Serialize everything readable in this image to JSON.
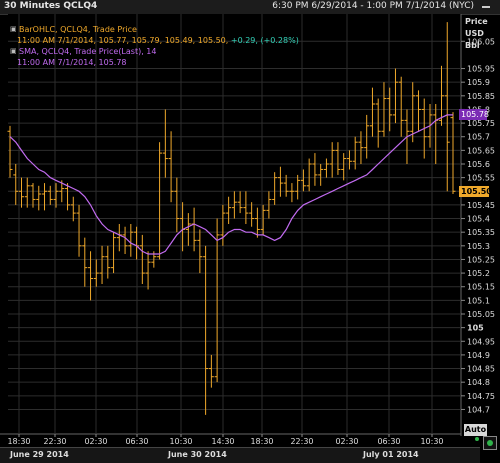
{
  "header": {
    "title": "30 Minutes QCLQ4",
    "range": "6:30 PM 6/29/2014 - 1:00 PM 7/1/2014 (NYC)"
  },
  "legend": {
    "bar_label": "BarOHLC, QCLQ4, Trade Price",
    "bar_values": "11:00 AM 7/1/2014, 105.77, 105.79, 105.49, 105.50,",
    "bar_change": "+0.29, (+0.28%)",
    "sma_label": "SMA, QCLQ4, Trade Price(Last),  14",
    "sma_values": "11:00 AM 7/1/2014, 105.78"
  },
  "axis": {
    "title_lines": [
      "Price",
      "USD",
      "Bbl"
    ],
    "auto_button": "Auto"
  },
  "badges": {
    "sma_last": "105.78",
    "price_last": "105.50"
  },
  "date_labels": [
    "June 29 2014",
    "June 30 2014",
    "July 01 2014"
  ],
  "colors": {
    "bars": "#f0a92b",
    "sma": "#c16bf0",
    "change": "#33d1b8",
    "grid": "#2d2d2d"
  },
  "chart_data": {
    "type": "bar",
    "subtype": "ohlc",
    "title": "30 Minutes QCLQ4",
    "ylabel": "Price USD Bbl",
    "ylim": [
      104.61,
      106.15
    ],
    "yticks": [
      104.7,
      104.75,
      104.8,
      104.85,
      104.9,
      104.95,
      105,
      105.05,
      105.1,
      105.15,
      105.2,
      105.25,
      105.3,
      105.35,
      105.4,
      105.45,
      105.5,
      105.55,
      105.6,
      105.65,
      105.7,
      105.75,
      105.8,
      105.85,
      105.9,
      105.95,
      106.05
    ],
    "xticks": [
      "18:30",
      "22:30",
      "02:30",
      "06:30",
      "10:30",
      "14:30",
      "18:30",
      "22:30",
      "02:30",
      "06:30",
      "10:30"
    ],
    "grid": true,
    "series": [
      {
        "name": "QCLQ4",
        "ohlc": [
          [
            105.72,
            105.74,
            105.55,
            105.58
          ],
          [
            105.56,
            105.6,
            105.45,
            105.5
          ],
          [
            105.5,
            105.55,
            105.44,
            105.48
          ],
          [
            105.48,
            105.55,
            105.44,
            105.52
          ],
          [
            105.52,
            105.53,
            105.44,
            105.47
          ],
          [
            105.47,
            105.52,
            105.43,
            105.49
          ],
          [
            105.49,
            105.53,
            105.43,
            105.5
          ],
          [
            105.5,
            105.52,
            105.45,
            105.47
          ],
          [
            105.47,
            105.53,
            105.44,
            105.5
          ],
          [
            105.5,
            105.54,
            105.46,
            105.51
          ],
          [
            105.51,
            105.53,
            105.43,
            105.45
          ],
          [
            105.45,
            105.48,
            105.39,
            105.42
          ],
          [
            105.42,
            105.45,
            105.26,
            105.3
          ],
          [
            105.3,
            105.33,
            105.15,
            105.22
          ],
          [
            105.22,
            105.28,
            105.1,
            105.18
          ],
          [
            105.18,
            105.25,
            105.15,
            105.2
          ],
          [
            105.2,
            105.3,
            105.16,
            105.26
          ],
          [
            105.26,
            105.3,
            105.18,
            105.22
          ],
          [
            105.22,
            105.35,
            105.2,
            105.33
          ],
          [
            105.33,
            105.38,
            105.28,
            105.34
          ],
          [
            105.34,
            105.37,
            105.27,
            105.3
          ],
          [
            105.3,
            105.38,
            105.26,
            105.35
          ],
          [
            105.35,
            105.37,
            105.25,
            105.3
          ],
          [
            105.3,
            105.34,
            105.16,
            105.2
          ],
          [
            105.2,
            105.28,
            105.14,
            105.24
          ],
          [
            105.24,
            105.28,
            105.22,
            105.26
          ],
          [
            105.26,
            105.68,
            105.25,
            105.64
          ],
          [
            105.64,
            105.8,
            105.55,
            105.62
          ],
          [
            105.62,
            105.72,
            105.46,
            105.5
          ],
          [
            105.5,
            105.55,
            105.35,
            105.4
          ],
          [
            105.4,
            105.46,
            105.28,
            105.36
          ],
          [
            105.36,
            105.42,
            105.3,
            105.38
          ],
          [
            105.38,
            105.44,
            105.28,
            105.32
          ],
          [
            105.32,
            105.36,
            105.2,
            105.26
          ],
          [
            105.26,
            105.3,
            104.68,
            104.85
          ],
          [
            104.85,
            104.9,
            104.78,
            104.82
          ],
          [
            104.82,
            105.4,
            104.8,
            105.34
          ],
          [
            105.34,
            105.45,
            105.3,
            105.42
          ],
          [
            105.42,
            105.48,
            105.38,
            105.44
          ],
          [
            105.44,
            105.5,
            105.4,
            105.46
          ],
          [
            105.46,
            105.5,
            105.42,
            105.44
          ],
          [
            105.44,
            105.5,
            105.38,
            105.42
          ],
          [
            105.42,
            105.46,
            105.37,
            105.4
          ],
          [
            105.4,
            105.44,
            105.33,
            105.36
          ],
          [
            105.36,
            105.45,
            105.34,
            105.43
          ],
          [
            105.43,
            105.5,
            105.4,
            105.47
          ],
          [
            105.47,
            105.57,
            105.45,
            105.55
          ],
          [
            105.55,
            105.59,
            105.48,
            105.53
          ],
          [
            105.53,
            105.56,
            105.48,
            105.5
          ],
          [
            105.5,
            105.53,
            105.46,
            105.5
          ],
          [
            105.5,
            105.56,
            105.47,
            105.54
          ],
          [
            105.54,
            105.58,
            105.5,
            105.52
          ],
          [
            105.52,
            105.62,
            105.5,
            105.6
          ],
          [
            105.6,
            105.64,
            105.52,
            105.56
          ],
          [
            105.56,
            105.6,
            105.52,
            105.58
          ],
          [
            105.58,
            105.62,
            105.55,
            105.6
          ],
          [
            105.6,
            105.68,
            105.55,
            105.65
          ],
          [
            105.65,
            105.68,
            105.56,
            105.58
          ],
          [
            105.58,
            105.64,
            105.54,
            105.62
          ],
          [
            105.62,
            105.65,
            105.58,
            105.61
          ],
          [
            105.61,
            105.7,
            105.58,
            105.68
          ],
          [
            105.68,
            105.72,
            105.6,
            105.66
          ],
          [
            105.66,
            105.78,
            105.62,
            105.74
          ],
          [
            105.74,
            105.88,
            105.7,
            105.82
          ],
          [
            105.82,
            105.84,
            105.66,
            105.72
          ],
          [
            105.72,
            105.9,
            105.7,
            105.84
          ],
          [
            105.84,
            105.88,
            105.72,
            105.78
          ],
          [
            105.78,
            105.95,
            105.75,
            105.9
          ],
          [
            105.9,
            105.92,
            105.7,
            105.76
          ],
          [
            105.76,
            105.8,
            105.6,
            105.72
          ],
          [
            105.72,
            105.9,
            105.68,
            105.85
          ],
          [
            105.85,
            105.87,
            105.72,
            105.8
          ],
          [
            105.8,
            105.84,
            105.62,
            105.7
          ],
          [
            105.7,
            105.82,
            105.66,
            105.78
          ],
          [
            105.78,
            105.82,
            105.6,
            105.76
          ],
          [
            105.76,
            105.96,
            105.74,
            105.85
          ],
          [
            105.85,
            106.12,
            105.5,
            105.68
          ],
          [
            105.77,
            105.79,
            105.49,
            105.5
          ]
        ]
      },
      {
        "name": "SMA 14",
        "values": [
          105.7,
          105.68,
          105.65,
          105.62,
          105.6,
          105.58,
          105.57,
          105.55,
          105.54,
          105.53,
          105.52,
          105.51,
          105.5,
          105.48,
          105.45,
          105.41,
          105.38,
          105.36,
          105.35,
          105.34,
          105.33,
          105.31,
          105.3,
          105.28,
          105.27,
          105.27,
          105.27,
          105.28,
          105.31,
          105.34,
          105.36,
          105.37,
          105.38,
          105.37,
          105.36,
          105.34,
          105.32,
          105.33,
          105.35,
          105.36,
          105.36,
          105.35,
          105.35,
          105.34,
          105.34,
          105.33,
          105.32,
          105.33,
          105.36,
          105.4,
          105.43,
          105.45,
          105.46,
          105.47,
          105.48,
          105.49,
          105.5,
          105.51,
          105.52,
          105.53,
          105.54,
          105.55,
          105.56,
          105.58,
          105.6,
          105.62,
          105.64,
          105.66,
          105.68,
          105.7,
          105.71,
          105.72,
          105.73,
          105.74,
          105.76,
          105.77,
          105.78,
          105.78
        ]
      }
    ]
  }
}
